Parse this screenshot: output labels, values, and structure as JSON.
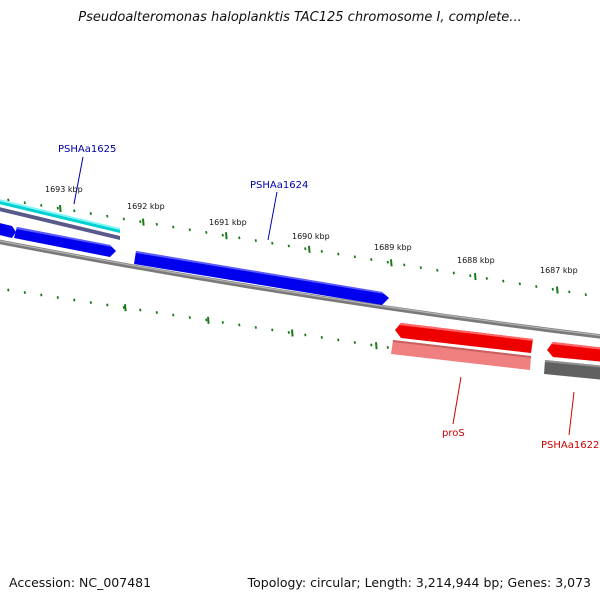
{
  "title": "Pseudoalteromonas haloplanktis TAC125 chromosome I, complete...",
  "footer": {
    "accession": "Accession: NC_007481",
    "summary": "Topology: circular; Length: 3,214,944 bp; Genes: 3,073"
  },
  "colors": {
    "forward_cds": "#0000ee",
    "forward_accent": "#00e5e5",
    "reverse_cds": "#ee0000",
    "reverse_pale": "#f08080",
    "backbone": "#888888",
    "tick": "#1a7a1a",
    "forward_label": "#0000aa",
    "reverse_label": "#cc0000"
  },
  "ticks": [
    {
      "label": "1693 kbp"
    },
    {
      "label": "1692 kbp"
    },
    {
      "label": "1691 kbp"
    },
    {
      "label": "1690 kbp"
    },
    {
      "label": "1689 kbp"
    },
    {
      "label": "1688 kbp"
    },
    {
      "label": "1687 kbp"
    }
  ],
  "genes": [
    {
      "name": "PSHAa1625",
      "strand": "forward"
    },
    {
      "name": "PSHAa1624",
      "strand": "forward"
    },
    {
      "name": "proS",
      "strand": "reverse"
    },
    {
      "name": "PSHAa1622",
      "strand": "reverse"
    }
  ]
}
